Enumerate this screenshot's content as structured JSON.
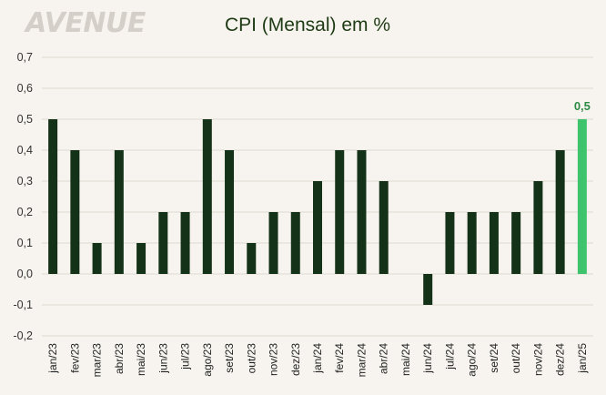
{
  "logo": {
    "text": "AVENUE"
  },
  "colors": {
    "bar": "#143217",
    "highlight": "#3ec46d",
    "grid": "#dcd8d0",
    "background": "#f7f4ef"
  },
  "chart_data": {
    "type": "bar",
    "title": "CPI (Mensal) em %",
    "xlabel": "",
    "ylabel": "",
    "ylim": [
      -0.2,
      0.7
    ],
    "ytick_step": 0.1,
    "ytick_labels": [
      "-0,2",
      "-0,1",
      "0,0",
      "0,1",
      "0,2",
      "0,3",
      "0,4",
      "0,5",
      "0,6",
      "0,7"
    ],
    "grid": "horizontal",
    "legend": "none",
    "categories": [
      "jan/23",
      "fev/23",
      "mar/23",
      "abr/23",
      "mai/23",
      "jun/23",
      "jul/23",
      "ago/23",
      "set/23",
      "out/23",
      "nov/23",
      "dez/23",
      "jan/24",
      "fev/24",
      "mar/24",
      "abr/24",
      "mai/24",
      "jun/24",
      "jul/24",
      "ago/24",
      "set/24",
      "out/24",
      "nov/24",
      "dez/24",
      "jan/25"
    ],
    "values": [
      0.5,
      0.4,
      0.1,
      0.4,
      0.1,
      0.2,
      0.2,
      0.5,
      0.4,
      0.1,
      0.2,
      0.2,
      0.3,
      0.4,
      0.4,
      0.3,
      0.0,
      -0.1,
      0.2,
      0.2,
      0.2,
      0.2,
      0.3,
      0.4,
      0.5
    ],
    "highlight_index": 24,
    "data_labels": [
      {
        "index": 24,
        "text": "0,5"
      }
    ]
  }
}
